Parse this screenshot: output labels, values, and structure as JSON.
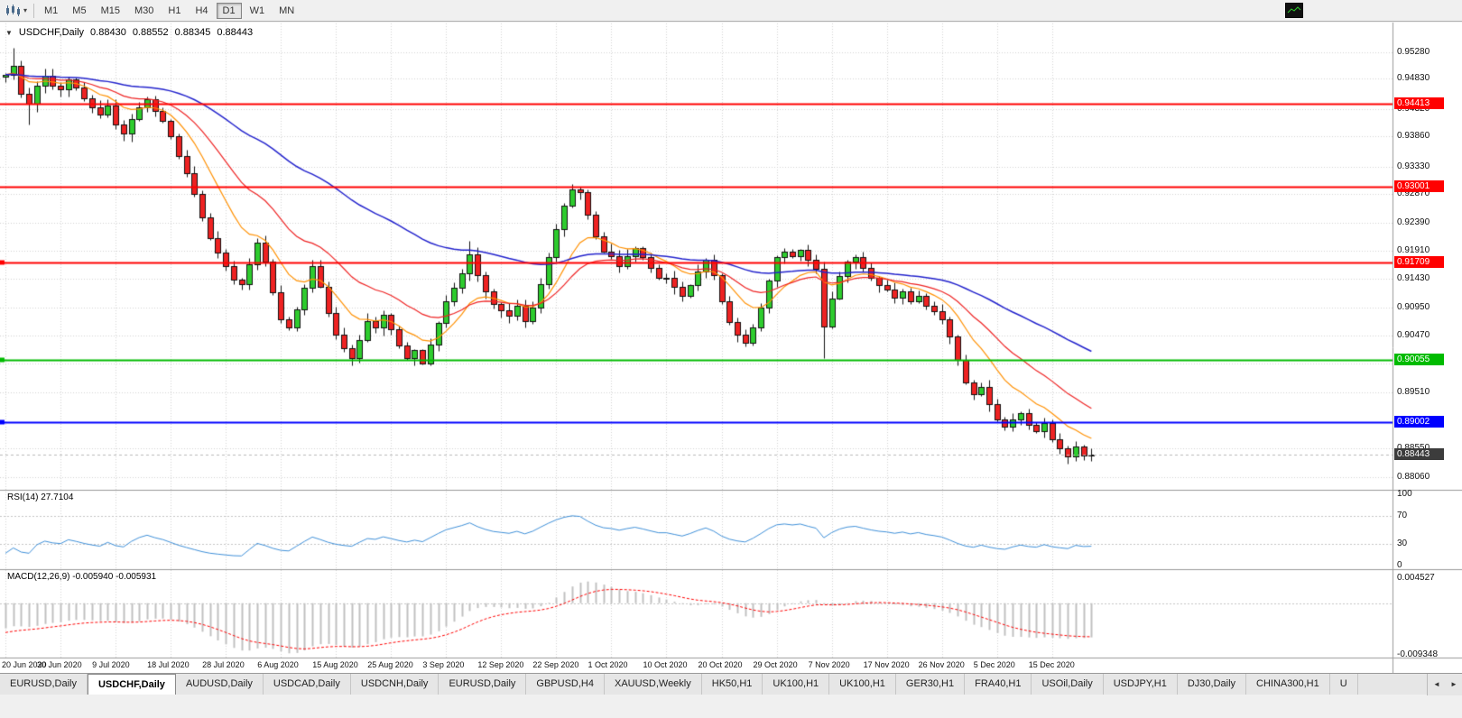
{
  "toolbar": {
    "timeframes": [
      "M1",
      "M5",
      "M15",
      "M30",
      "H1",
      "H4",
      "D1",
      "W1",
      "MN"
    ],
    "active_timeframe": "D1",
    "icons": {
      "caret": "▾",
      "mini_chart": "candlestick-chart",
      "dark_panel": "mini-chart-thumbnail"
    }
  },
  "chart": {
    "symbol_label": "USDCHF,Daily",
    "expander_icon": "▼",
    "ohlc": {
      "open": "0.88430",
      "high": "0.88552",
      "low": "0.88345",
      "close": "0.88443"
    }
  },
  "chart_data": {
    "type": "candlestick",
    "symbol": "USDCHF",
    "timeframe": "Daily",
    "x_labels": [
      "20 Jun 2020",
      "30 Jun 2020",
      "9 Jul 2020",
      "18 Jul 2020",
      "28 Jul 2020",
      "6 Aug 2020",
      "15 Aug 2020",
      "25 Aug 2020",
      "3 Sep 2020",
      "12 Sep 2020",
      "22 Sep 2020",
      "1 Oct 2020",
      "10 Oct 2020",
      "20 Oct 2020",
      "29 Oct 2020",
      "7 Nov 2020",
      "17 Nov 2020",
      "26 Nov 2020",
      "5 Dec 2020",
      "15 Dec 2020"
    ],
    "candles_per_label": 7,
    "y_max": 0.9577,
    "y_min": 0.8788,
    "y_ticks": [
      "0.95280",
      "0.94830",
      "0.94320",
      "0.93860",
      "0.93330",
      "0.92870",
      "0.92390",
      "0.91910",
      "0.91430",
      "0.90950",
      "0.90470",
      "0.89990",
      "0.89510",
      "0.88550",
      "0.88060"
    ],
    "closes": [
      0.949,
      0.9505,
      0.9458,
      0.944,
      0.9472,
      0.9488,
      0.9472,
      0.9465,
      0.9482,
      0.9468,
      0.945,
      0.9435,
      0.9422,
      0.9438,
      0.9405,
      0.939,
      0.9415,
      0.9435,
      0.9448,
      0.9428,
      0.9412,
      0.9385,
      0.9352,
      0.9322,
      0.9288,
      0.9248,
      0.9212,
      0.9188,
      0.9165,
      0.9142,
      0.9135,
      0.9168,
      0.9205,
      0.9172,
      0.912,
      0.9075,
      0.906,
      0.9092,
      0.9128,
      0.9165,
      0.913,
      0.9085,
      0.9048,
      0.9025,
      0.9008,
      0.904,
      0.9072,
      0.906,
      0.9082,
      0.9058,
      0.903,
      0.9008,
      0.9022,
      0.9,
      0.9032,
      0.9068,
      0.9105,
      0.9128,
      0.9152,
      0.9185,
      0.915,
      0.9122,
      0.91,
      0.909,
      0.908,
      0.9098,
      0.9072,
      0.9095,
      0.9135,
      0.918,
      0.9228,
      0.9268,
      0.9295,
      0.929,
      0.9252,
      0.9215,
      0.919,
      0.9182,
      0.9165,
      0.9182,
      0.9195,
      0.918,
      0.9162,
      0.9145,
      0.9145,
      0.913,
      0.9115,
      0.9132,
      0.9155,
      0.9175,
      0.915,
      0.9105,
      0.907,
      0.9048,
      0.9035,
      0.906,
      0.9095,
      0.914,
      0.918,
      0.919,
      0.9182,
      0.9192,
      0.9175,
      0.916,
      0.9062,
      0.911,
      0.9148,
      0.9172,
      0.918,
      0.9162,
      0.9145,
      0.9132,
      0.9125,
      0.9112,
      0.9122,
      0.9105,
      0.9115,
      0.9098,
      0.9088,
      0.9075,
      0.9045,
      0.9005,
      0.8968,
      0.8948,
      0.896,
      0.893,
      0.8905,
      0.8892,
      0.8905,
      0.8915,
      0.8895,
      0.8885,
      0.8898,
      0.887,
      0.8855,
      0.8842,
      0.8858,
      0.8843,
      0.88443
    ],
    "wick_overrides": {
      "1": {
        "high": 0.9535
      },
      "3": {
        "low": 0.9405
      },
      "59": {
        "high": 0.9208
      },
      "72": {
        "high": 0.9305
      },
      "104": {
        "low": 0.9008
      },
      "138": {
        "high": 0.88552,
        "low": 0.88345
      }
    },
    "colors": {
      "bull": "#2ECC2E",
      "bear": "#EE2222",
      "wick": "#111111",
      "grid": "#d2d2d2"
    },
    "moving_averages": [
      {
        "period": 10,
        "color": "#FF9000",
        "width": 1.2,
        "name": "fast-ma"
      },
      {
        "period": 21,
        "color": "#EE2222",
        "width": 1.2,
        "name": "medium-ma"
      },
      {
        "period": 55,
        "color": "#2222CC",
        "width": 1.5,
        "name": "slow-ma"
      }
    ],
    "hlines": [
      {
        "price": 0.94413,
        "label": "0.94413",
        "color": "#FF0000",
        "width": 2,
        "edge_marker": false
      },
      {
        "price": 0.93001,
        "label": "0.93001",
        "color": "#FF0000",
        "width": 2,
        "edge_marker": false
      },
      {
        "price": 0.91709,
        "label": "0.91709",
        "color": "#FF0000",
        "width": 2,
        "edge_marker": true
      },
      {
        "price": 0.90055,
        "label": "0.90055",
        "color": "#00BB00",
        "width": 2,
        "edge_marker": true
      },
      {
        "price": 0.89002,
        "label": "0.89002",
        "color": "#0000FF",
        "width": 2,
        "edge_marker": true
      }
    ],
    "current_price": {
      "price": 0.88443,
      "label": "0.88443",
      "color": "#3c3c3c"
    },
    "indicators": {
      "rsi": {
        "label": "RSI(14) 27.7104",
        "period": 14,
        "current": 27.7104,
        "levels": [
          "100",
          "70",
          "30",
          "0"
        ],
        "color": "#3E8FD8"
      },
      "macd": {
        "label": "MACD(12,26,9) -0.005940 -0.005931",
        "values": [
          -0.00594,
          -0.005931
        ],
        "axis_max": "0.004527",
        "axis_min": "-0.009348",
        "histogram_color": "#C0C0C0",
        "signal_color": "#FF0000"
      }
    }
  },
  "tabs": {
    "items": [
      "EURUSD,Daily",
      "USDCHF,Daily",
      "AUDUSD,Daily",
      "USDCAD,Daily",
      "USDCNH,Daily",
      "EURUSD,Daily",
      "GBPUSD,H4",
      "XAUUSD,Weekly",
      "HK50,H1",
      "UK100,H1",
      "UK100,H1",
      "GER30,H1",
      "FRA40,H1",
      "USOil,Daily",
      "USDJPY,H1",
      "DJ30,Daily",
      "CHINA300,H1",
      "U"
    ],
    "active_index": 1,
    "scroll_left_icon": "◄",
    "scroll_right_icon": "►"
  }
}
